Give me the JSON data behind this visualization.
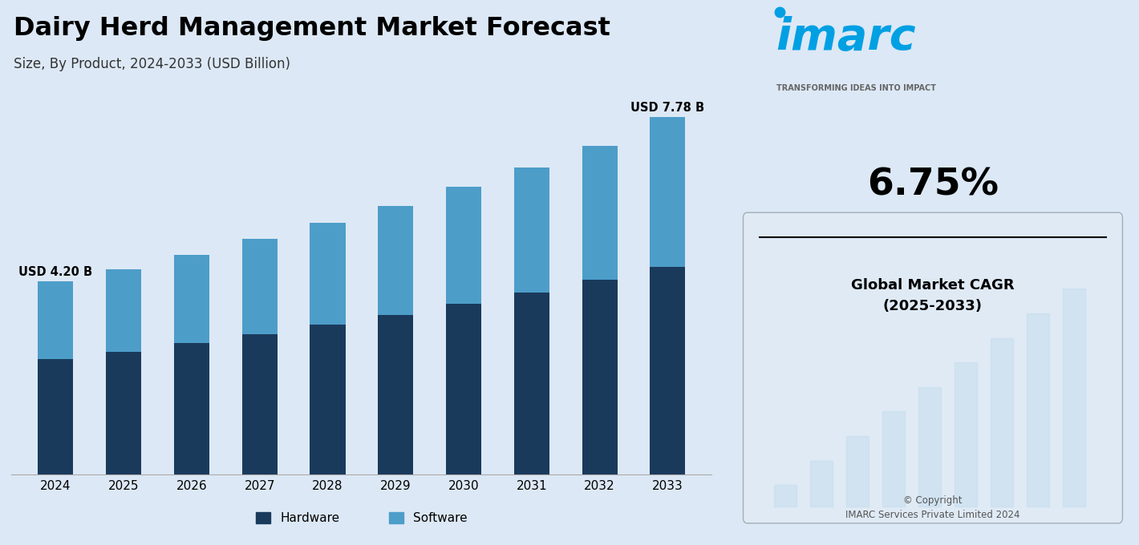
{
  "title": "Dairy Herd Management Market Forecast",
  "subtitle": "Size, By Product, 2024-2033 (USD Billion)",
  "years": [
    2024,
    2025,
    2026,
    2027,
    2028,
    2029,
    2030,
    2031,
    2032,
    2033
  ],
  "hardware": [
    2.5,
    2.67,
    2.85,
    3.05,
    3.25,
    3.47,
    3.71,
    3.96,
    4.23,
    4.52
  ],
  "software": [
    1.7,
    1.8,
    1.93,
    2.07,
    2.22,
    2.38,
    2.55,
    2.73,
    2.93,
    3.26
  ],
  "total_2024_label": "USD 4.20 B",
  "total_2033_label": "USD 7.78 B",
  "hardware_color": "#1a3a5c",
  "software_color": "#4d9dc9",
  "bg_color": "#dce8f5",
  "legend_hardware": "Hardware",
  "legend_software": "Software",
  "cagr_value": "6.75%",
  "cagr_label": "Global Market CAGR\n(2025-2033)",
  "copyright_text": "© Copyright\nIMARC Services Private Limited 2024",
  "imarc_color": "#00a0e3",
  "tagline": "TRANSFORMING IDEAS INTO IMPACT",
  "ylim_max": 9.5,
  "title_fontsize": 23,
  "subtitle_fontsize": 12,
  "tick_fontsize": 11
}
